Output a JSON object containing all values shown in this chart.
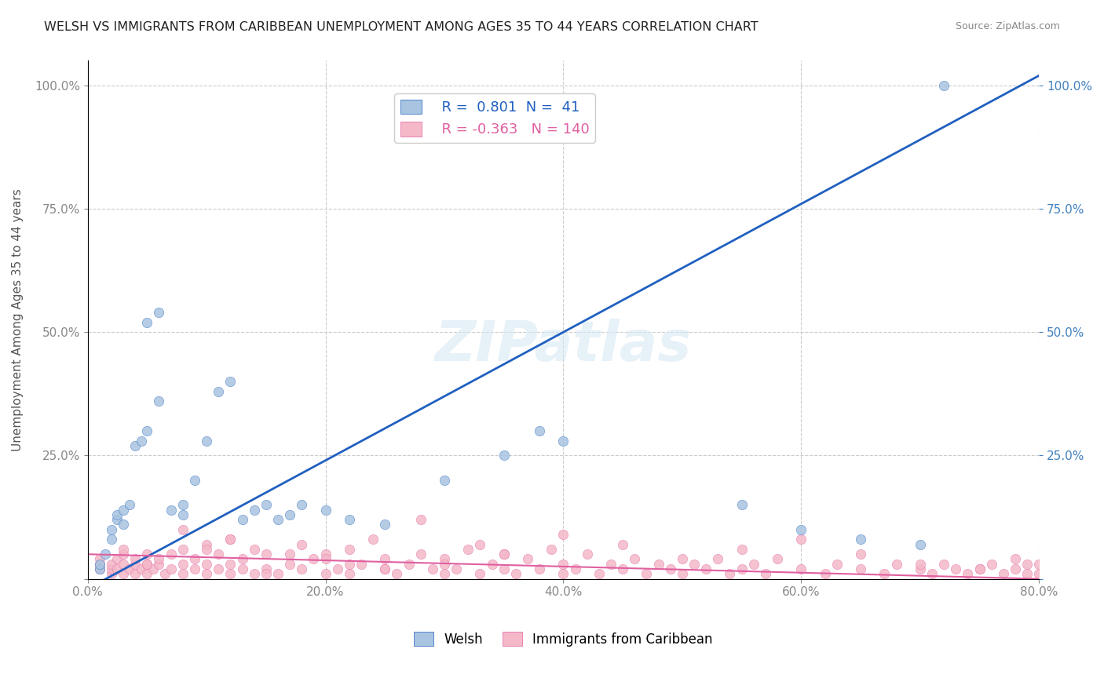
{
  "title": "WELSH VS IMMIGRANTS FROM CARIBBEAN UNEMPLOYMENT AMONG AGES 35 TO 44 YEARS CORRELATION CHART",
  "source": "Source: ZipAtlas.com",
  "xlabel": "",
  "ylabel": "Unemployment Among Ages 35 to 44 years",
  "welsh_color": "#a8c4e0",
  "caribbean_color": "#f4b8c8",
  "welsh_line_color": "#2060c0",
  "caribbean_line_color": "#e060a0",
  "welsh_R": 0.801,
  "welsh_N": 41,
  "caribbean_R": -0.363,
  "caribbean_N": 140,
  "xlim": [
    0.0,
    0.8
  ],
  "ylim": [
    0.0,
    1.05
  ],
  "xticks": [
    0.0,
    0.2,
    0.4,
    0.6,
    0.8
  ],
  "yticks": [
    0.0,
    0.25,
    0.5,
    0.75,
    1.0
  ],
  "xtick_labels": [
    "0.0%",
    "20.0%",
    "40.0%",
    "60.0%",
    "80.0%"
  ],
  "ytick_labels": [
    "",
    "25.0%",
    "50.0%",
    "75.0%",
    "100.0%"
  ],
  "welsh_x": [
    0.01,
    0.01,
    0.015,
    0.02,
    0.02,
    0.025,
    0.025,
    0.03,
    0.03,
    0.035,
    0.04,
    0.045,
    0.05,
    0.05,
    0.06,
    0.06,
    0.07,
    0.08,
    0.08,
    0.09,
    0.1,
    0.11,
    0.12,
    0.13,
    0.14,
    0.15,
    0.16,
    0.17,
    0.18,
    0.2,
    0.22,
    0.25,
    0.3,
    0.35,
    0.38,
    0.4,
    0.55,
    0.6,
    0.65,
    0.7,
    0.72
  ],
  "welsh_y": [
    0.02,
    0.03,
    0.05,
    0.08,
    0.1,
    0.12,
    0.13,
    0.11,
    0.14,
    0.15,
    0.27,
    0.28,
    0.3,
    0.52,
    0.54,
    0.36,
    0.14,
    0.15,
    0.13,
    0.2,
    0.28,
    0.38,
    0.4,
    0.12,
    0.14,
    0.15,
    0.12,
    0.13,
    0.15,
    0.14,
    0.12,
    0.11,
    0.2,
    0.25,
    0.3,
    0.28,
    0.15,
    0.1,
    0.08,
    0.07,
    1.0
  ],
  "caribbean_x": [
    0.01,
    0.01,
    0.01,
    0.02,
    0.02,
    0.02,
    0.025,
    0.025,
    0.03,
    0.03,
    0.03,
    0.03,
    0.035,
    0.04,
    0.04,
    0.04,
    0.045,
    0.05,
    0.05,
    0.05,
    0.055,
    0.06,
    0.06,
    0.065,
    0.07,
    0.07,
    0.08,
    0.08,
    0.08,
    0.09,
    0.09,
    0.1,
    0.1,
    0.1,
    0.11,
    0.11,
    0.12,
    0.12,
    0.12,
    0.13,
    0.13,
    0.14,
    0.14,
    0.15,
    0.15,
    0.16,
    0.17,
    0.18,
    0.18,
    0.19,
    0.2,
    0.2,
    0.21,
    0.22,
    0.22,
    0.23,
    0.24,
    0.25,
    0.25,
    0.26,
    0.27,
    0.28,
    0.29,
    0.3,
    0.3,
    0.31,
    0.32,
    0.33,
    0.34,
    0.35,
    0.35,
    0.36,
    0.37,
    0.38,
    0.39,
    0.4,
    0.4,
    0.41,
    0.42,
    0.43,
    0.44,
    0.45,
    0.46,
    0.47,
    0.48,
    0.49,
    0.5,
    0.51,
    0.52,
    0.53,
    0.54,
    0.55,
    0.56,
    0.57,
    0.58,
    0.6,
    0.62,
    0.63,
    0.65,
    0.67,
    0.68,
    0.7,
    0.71,
    0.72,
    0.73,
    0.74,
    0.75,
    0.76,
    0.77,
    0.78,
    0.79,
    0.8,
    0.55,
    0.5,
    0.6,
    0.65,
    0.7,
    0.75,
    0.78,
    0.79,
    0.8,
    0.45,
    0.4,
    0.35,
    0.3,
    0.25,
    0.2,
    0.15,
    0.1,
    0.05,
    0.08,
    0.12,
    0.17,
    0.22,
    0.28,
    0.33
  ],
  "caribbean_y": [
    0.02,
    0.03,
    0.04,
    0.01,
    0.02,
    0.03,
    0.02,
    0.04,
    0.01,
    0.03,
    0.05,
    0.06,
    0.02,
    0.01,
    0.03,
    0.04,
    0.02,
    0.01,
    0.03,
    0.05,
    0.02,
    0.03,
    0.04,
    0.01,
    0.02,
    0.05,
    0.01,
    0.03,
    0.06,
    0.02,
    0.04,
    0.01,
    0.03,
    0.07,
    0.02,
    0.05,
    0.01,
    0.03,
    0.08,
    0.02,
    0.04,
    0.01,
    0.06,
    0.02,
    0.05,
    0.01,
    0.03,
    0.07,
    0.02,
    0.04,
    0.01,
    0.05,
    0.02,
    0.06,
    0.01,
    0.03,
    0.08,
    0.02,
    0.04,
    0.01,
    0.03,
    0.05,
    0.02,
    0.01,
    0.04,
    0.02,
    0.06,
    0.01,
    0.03,
    0.02,
    0.05,
    0.01,
    0.04,
    0.02,
    0.06,
    0.01,
    0.03,
    0.02,
    0.05,
    0.01,
    0.03,
    0.02,
    0.04,
    0.01,
    0.03,
    0.02,
    0.01,
    0.03,
    0.02,
    0.04,
    0.01,
    0.02,
    0.03,
    0.01,
    0.04,
    0.02,
    0.01,
    0.03,
    0.02,
    0.01,
    0.03,
    0.02,
    0.01,
    0.03,
    0.02,
    0.01,
    0.02,
    0.03,
    0.01,
    0.02,
    0.03,
    0.01,
    0.06,
    0.04,
    0.08,
    0.05,
    0.03,
    0.02,
    0.04,
    0.01,
    0.03,
    0.07,
    0.09,
    0.05,
    0.03,
    0.02,
    0.04,
    0.01,
    0.06,
    0.03,
    0.1,
    0.08,
    0.05,
    0.03,
    0.12,
    0.07
  ],
  "watermark_text": "ZIPatlas",
  "legend_box_color": "#ffffff",
  "legend_border_color": "#cccccc",
  "grid_color": "#cccccc",
  "grid_style": "--",
  "background_color": "#ffffff",
  "right_ytick_color": "#4080c0",
  "figsize": [
    14.06,
    8.92
  ],
  "dpi": 100
}
